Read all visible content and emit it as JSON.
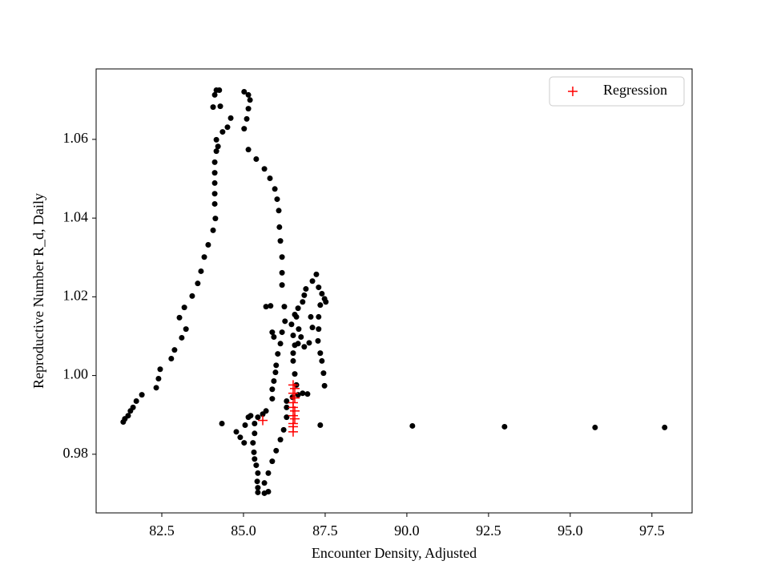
{
  "chart_data": {
    "type": "scatter",
    "xlabel": "Encounter Density, Adjusted",
    "ylabel": "Reproductive Number R_d, Daily",
    "xlim": [
      80.49,
      98.73
    ],
    "ylim": [
      0.9651,
      1.0779
    ],
    "xticks": [
      82.5,
      {
        "value": 85,
        "label": "85.0"
      },
      87.5,
      {
        "value": 90,
        "label": "90.0"
      },
      92.5,
      {
        "value": 95,
        "label": "95.0"
      },
      97.5
    ],
    "yticks": [
      0.98,
      {
        "value": 1,
        "label": "1.00"
      },
      1.02,
      1.04,
      1.06
    ],
    "grid": false,
    "legend": "upper right",
    "series": [
      {
        "color": "#000000",
        "marker": "o",
        "x": [
          81.32,
          81.37,
          81.47,
          81.54,
          81.62,
          81.72,
          81.89,
          82.33,
          82.4,
          82.45,
          82.79,
          82.89,
          83.11,
          83.24,
          83.04,
          83.19,
          83.43,
          83.6,
          83.7,
          83.8,
          83.92,
          84.07,
          84.14,
          84.12,
          84.12,
          84.12,
          84.12,
          84.12,
          84.17,
          84.22,
          84.17,
          84.36,
          84.51,
          84.61,
          84.29,
          84.07,
          84.12,
          84.17,
          84.26,
          85.02,
          85.15,
          85.2,
          85.15,
          85.1,
          85.02,
          85.15,
          85.39,
          85.64,
          85.81,
          85.96,
          86.03,
          86.08,
          86.1,
          86.13,
          86.18,
          86.18,
          86.18,
          86.25,
          86.27,
          86.18,
          86.13,
          86.05,
          86.0,
          85.98,
          85.93,
          85.88,
          85.88,
          85.69,
          85.59,
          85.44,
          85.34,
          85.34,
          85.29,
          85.32,
          85.34,
          85.39,
          85.44,
          85.42,
          85.44,
          85.44,
          85.64,
          85.76,
          85.64,
          85.76,
          85.88,
          86.0,
          86.13,
          86.23,
          86.32,
          86.32,
          86.32,
          86.5,
          86.67,
          86.81,
          86.96,
          86.62,
          86.57,
          86.52,
          86.52,
          86.57,
          86.52,
          86.47,
          86.57,
          86.67,
          86.81,
          86.86,
          86.91,
          87.11,
          87.23,
          87.3,
          87.4,
          87.48,
          87.52,
          87.35,
          87.3,
          87.3,
          87.28,
          87.35,
          87.4,
          87.45,
          87.48,
          86.62,
          86.69,
          86.76,
          86.67,
          86.86,
          87.01,
          87.11,
          87.06,
          85.83,
          85.69,
          85.88,
          85.93,
          84.34,
          84.78,
          84.9,
          85.02,
          85.15,
          85.05,
          85.22,
          87.35,
          90.17,
          92.99,
          95.76,
          97.89
        ],
        "values": [
          0.9882,
          0.989,
          0.9898,
          0.991,
          0.9919,
          0.9935,
          0.9951,
          0.9969,
          0.9992,
          1.0016,
          1.0043,
          1.0065,
          1.0096,
          1.0118,
          1.0147,
          1.0173,
          1.0202,
          1.0234,
          1.0265,
          1.0301,
          1.0332,
          1.0369,
          1.0399,
          1.0436,
          1.0462,
          1.0489,
          1.0515,
          1.0542,
          1.057,
          1.0582,
          1.0599,
          1.0619,
          1.0631,
          1.0654,
          1.0684,
          1.0682,
          1.0713,
          1.0725,
          1.0725,
          1.0721,
          1.0713,
          1.07,
          1.0678,
          1.0652,
          1.0627,
          1.0574,
          1.055,
          1.0525,
          1.0501,
          1.0474,
          1.0448,
          1.0419,
          1.0377,
          1.0342,
          1.0301,
          1.0261,
          1.023,
          1.0175,
          1.0138,
          1.011,
          1.0081,
          1.0055,
          1.0026,
          1.0008,
          0.9986,
          0.9965,
          0.9941,
          0.991,
          0.9902,
          0.9894,
          0.9878,
          0.9853,
          0.9829,
          0.9805,
          0.9788,
          0.9772,
          0.9752,
          0.9731,
          0.9715,
          0.9703,
          0.9701,
          0.9705,
          0.9727,
          0.9752,
          0.9782,
          0.9809,
          0.9837,
          0.9862,
          0.9894,
          0.9919,
          0.9935,
          0.9945,
          0.9951,
          0.9955,
          0.9953,
          0.9976,
          1.0004,
          1.0037,
          1.0057,
          1.0077,
          1.0102,
          1.013,
          1.0155,
          1.0171,
          1.0187,
          1.0204,
          1.022,
          1.024,
          1.0257,
          1.0224,
          1.0208,
          1.0195,
          1.0187,
          1.0179,
          1.0149,
          1.0118,
          1.0088,
          1.0057,
          1.0037,
          1.0006,
          0.9974,
          1.0149,
          1.0118,
          1.0098,
          1.0081,
          1.0073,
          1.0083,
          1.0122,
          1.0149,
          1.0177,
          1.0175,
          1.011,
          1.0098,
          0.9878,
          0.9857,
          0.9843,
          0.9829,
          0.9894,
          0.9874,
          0.9898,
          0.9874,
          0.9872,
          0.987,
          0.9868,
          0.9868
        ]
      },
      {
        "name": "Regression",
        "color": "#ff0000",
        "marker": "+",
        "x": [
          85.59,
          86.52,
          86.57,
          86.52,
          86.57,
          86.52,
          86.52,
          86.57,
          86.52,
          86.57,
          86.52,
          86.52,
          86.52
        ],
        "values": [
          0.9886,
          0.9976,
          0.9967,
          0.9955,
          0.9943,
          0.9931,
          0.9919,
          0.991,
          0.9898,
          0.989,
          0.9878,
          0.987,
          0.9857
        ]
      }
    ]
  }
}
